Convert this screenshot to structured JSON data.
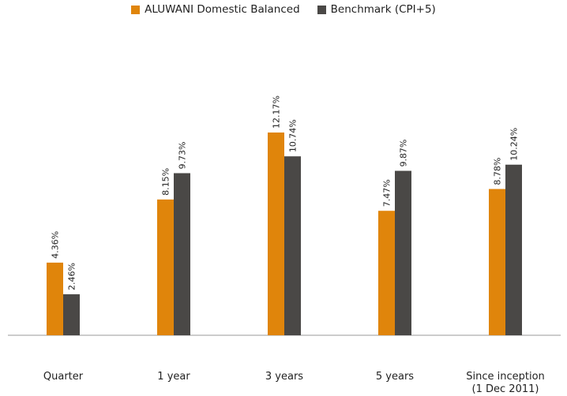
{
  "chart_data": {
    "type": "bar",
    "categories": [
      [
        "Quarter"
      ],
      [
        "1 year"
      ],
      [
        "3 years"
      ],
      [
        "5 years"
      ],
      [
        "Since inception",
        "(1 Dec 2011)"
      ]
    ],
    "series": [
      {
        "name": "ALUWANI Domestic Balanced",
        "color": "#E0850B",
        "values": [
          4.36,
          8.15,
          12.17,
          7.47,
          8.78
        ],
        "labels": [
          "4.36%",
          "8.15%",
          "12.17%",
          "7.47%",
          "8.78%"
        ]
      },
      {
        "name": "Benchmark (CPI+5)",
        "color": "#4A4846",
        "values": [
          2.46,
          9.73,
          10.74,
          9.87,
          10.24
        ],
        "labels": [
          "2.46%",
          "9.73%",
          "10.74%",
          "9.87%",
          "10.24%"
        ]
      }
    ],
    "ylim": [
      0,
      14
    ],
    "grid": false,
    "legend_position": "top"
  }
}
